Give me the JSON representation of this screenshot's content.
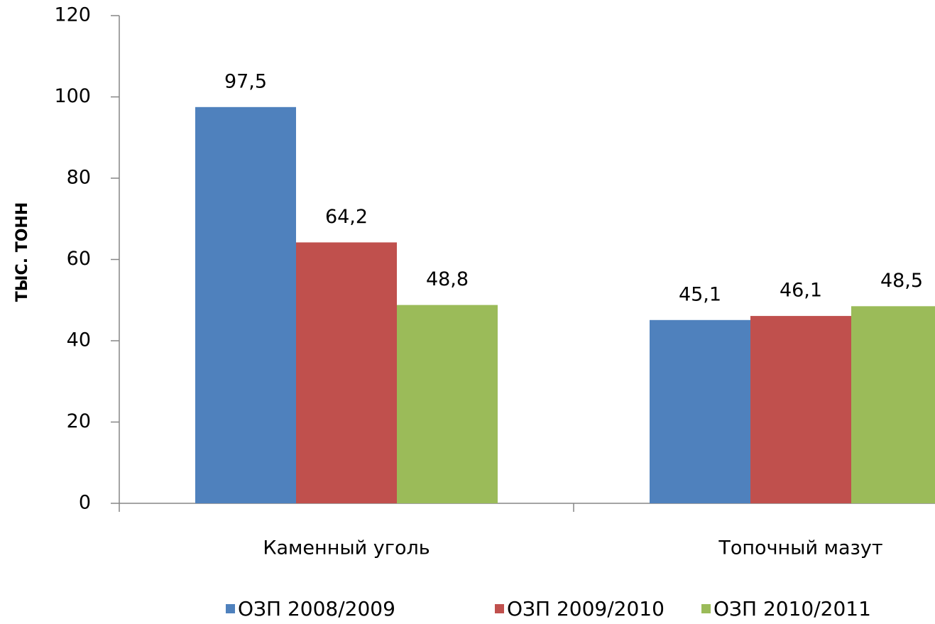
{
  "chart_data": {
    "type": "bar",
    "y_label": "ТЫС. ТОНН",
    "categories": [
      "Каменный уголь",
      "Топочный мазут"
    ],
    "series": [
      {
        "name": "ОЗП 2008/2009",
        "color": "#4f81bd",
        "values": [
          97.5,
          45.1
        ],
        "value_labels": [
          "97,5",
          "45,1"
        ]
      },
      {
        "name": "ОЗП 2009/2010",
        "color": "#c0504d",
        "values": [
          64.2,
          46.1
        ],
        "value_labels": [
          "64,2",
          "46,1"
        ]
      },
      {
        "name": "ОЗП 2010/2011",
        "color": "#9bbb59",
        "values": [
          48.8,
          48.5
        ],
        "value_labels": [
          "48,8",
          "48,5"
        ]
      }
    ],
    "ylim": [
      0,
      120
    ],
    "yticks": [
      0,
      20,
      40,
      60,
      80,
      100,
      120
    ],
    "grid": false,
    "legend": "bottom"
  }
}
